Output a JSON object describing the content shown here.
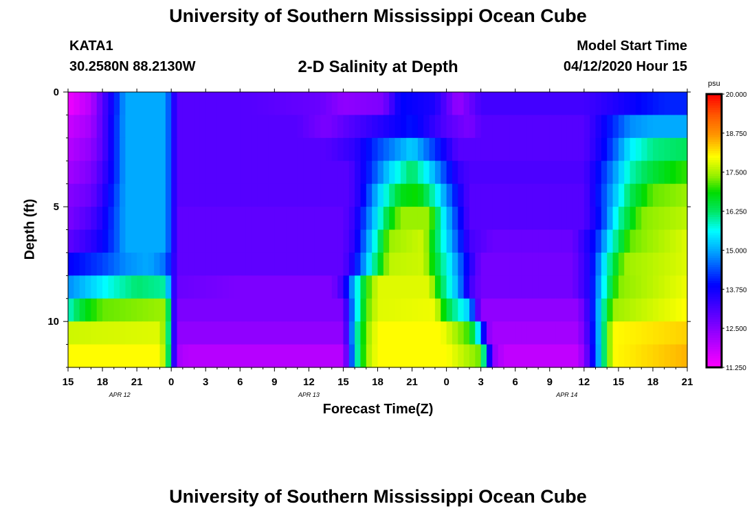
{
  "header": {
    "title": "University of Southern Mississippi Ocean Cube",
    "station": "KATA1",
    "coords": "30.2580N 88.2130W",
    "subtitle": "2-D Salinity at Depth",
    "start_label": "Model Start Time",
    "start_value": "04/12/2020 Hour 15"
  },
  "footer": {
    "title": "University of Southern Mississippi Ocean Cube"
  },
  "chart_data": {
    "type": "heatmap",
    "title": "2-D Salinity at Depth",
    "xlabel": "Forecast Time(Z)",
    "ylabel": "Depth (ft)",
    "x_hours_from_start": [
      0,
      54
    ],
    "y_range_ft": [
      0,
      12
    ],
    "y_ticks": [
      0,
      5,
      10
    ],
    "x_tick_labels": [
      "15",
      "18",
      "21",
      "0",
      "3",
      "6",
      "9",
      "12",
      "15",
      "18",
      "21",
      "0",
      "3",
      "6",
      "9",
      "12",
      "15",
      "18",
      "21"
    ],
    "date_labels": [
      {
        "text": "APR 12",
        "hour": 4.5
      },
      {
        "text": "APR 13",
        "hour": 21
      },
      {
        "text": "APR 14",
        "hour": 43.5
      }
    ],
    "colorbar": {
      "unit": "psu",
      "min": 11.25,
      "max": 20.0,
      "tick_labels": [
        "20.000",
        "18.750",
        "17.500",
        "16.250",
        "15.000",
        "13.750",
        "12.500",
        "11.250"
      ],
      "tick_values": [
        20.0,
        18.75,
        17.5,
        16.25,
        15.0,
        13.75,
        12.5,
        11.25
      ]
    },
    "layers_depth_ft": [
      0.5,
      1.5,
      2.5,
      3.5,
      4.5,
      5.5,
      6.5,
      7.5,
      8.5,
      9.5,
      10.5,
      11.5
    ],
    "profiles_psu_by_depth_layer": [
      [
        [
          0,
          11.4
        ],
        [
          2,
          12.0
        ],
        [
          3,
          13.0
        ],
        [
          4,
          13.9
        ],
        [
          5,
          15.0
        ],
        [
          8.5,
          15.0
        ],
        [
          9.2,
          13.6
        ],
        [
          9.5,
          13.0
        ],
        [
          16,
          13.0
        ],
        [
          22,
          12.8
        ],
        [
          24,
          12.4
        ],
        [
          27.5,
          12.6
        ],
        [
          29,
          13.9
        ],
        [
          32,
          13.6
        ],
        [
          34,
          12.3
        ],
        [
          36,
          13.2
        ],
        [
          45,
          13.2
        ],
        [
          48,
          13.6
        ],
        [
          50,
          13.9
        ],
        [
          52,
          14.1
        ],
        [
          54,
          14.1
        ]
      ],
      [
        [
          0,
          11.8
        ],
        [
          2,
          12.2
        ],
        [
          3,
          13.0
        ],
        [
          4,
          14.0
        ],
        [
          5,
          15.0
        ],
        [
          8.5,
          15.0
        ],
        [
          9.2,
          13.6
        ],
        [
          9.5,
          13.0
        ],
        [
          20,
          13.0
        ],
        [
          22.5,
          12.6
        ],
        [
          24.5,
          13.0
        ],
        [
          30,
          14.0
        ],
        [
          33,
          13.0
        ],
        [
          35,
          12.6
        ],
        [
          36,
          13.0
        ],
        [
          45,
          13.0
        ],
        [
          47,
          13.9
        ],
        [
          49,
          14.8
        ],
        [
          51,
          15.0
        ],
        [
          54,
          15.0
        ]
      ],
      [
        [
          0,
          12.0
        ],
        [
          2,
          12.4
        ],
        [
          3,
          13.0
        ],
        [
          4,
          14.0
        ],
        [
          5,
          15.0
        ],
        [
          8.5,
          15.0
        ],
        [
          9.2,
          13.6
        ],
        [
          9.5,
          13.0
        ],
        [
          22.5,
          13.0
        ],
        [
          25,
          13.4
        ],
        [
          27,
          14.3
        ],
        [
          30,
          15.3
        ],
        [
          32,
          14.2
        ],
        [
          34,
          13.0
        ],
        [
          45,
          13.0
        ],
        [
          47,
          14.0
        ],
        [
          49,
          15.5
        ],
        [
          51,
          16.1
        ],
        [
          54,
          16.3
        ]
      ],
      [
        [
          0,
          12.2
        ],
        [
          2,
          12.6
        ],
        [
          3,
          13.2
        ],
        [
          4,
          14.0
        ],
        [
          5,
          15.0
        ],
        [
          8.5,
          15.0
        ],
        [
          9.2,
          13.6
        ],
        [
          9.5,
          13.0
        ],
        [
          24.5,
          13.0
        ],
        [
          26,
          13.9
        ],
        [
          28,
          15.3
        ],
        [
          30,
          16.3
        ],
        [
          31.5,
          15.4
        ],
        [
          34,
          13.4
        ],
        [
          35,
          13.1
        ],
        [
          45,
          13.1
        ],
        [
          47,
          14.4
        ],
        [
          49,
          15.9
        ],
        [
          51,
          16.5
        ],
        [
          53,
          16.9
        ],
        [
          54,
          17.0
        ]
      ],
      [
        [
          0,
          12.5
        ],
        [
          2,
          12.8
        ],
        [
          3,
          13.4
        ],
        [
          4,
          14.2
        ],
        [
          5,
          15.0
        ],
        [
          8.5,
          15.0
        ],
        [
          9.2,
          13.6
        ],
        [
          9.5,
          13.0
        ],
        [
          24.5,
          13.0
        ],
        [
          25.5,
          13.6
        ],
        [
          27,
          15.2
        ],
        [
          29,
          16.7
        ],
        [
          30.5,
          16.9
        ],
        [
          32,
          15.8
        ],
        [
          34,
          13.8
        ],
        [
          35,
          13.0
        ],
        [
          45,
          13.0
        ],
        [
          47,
          14.6
        ],
        [
          49,
          16.3
        ],
        [
          51,
          17.2
        ],
        [
          54,
          17.4
        ]
      ],
      [
        [
          0,
          12.6
        ],
        [
          2,
          13.1
        ],
        [
          3,
          13.6
        ],
        [
          4,
          14.3
        ],
        [
          5,
          15.0
        ],
        [
          8.5,
          15.0
        ],
        [
          9.2,
          13.6
        ],
        [
          9.5,
          12.9
        ],
        [
          24,
          12.9
        ],
        [
          25,
          13.4
        ],
        [
          26.5,
          15.0
        ],
        [
          28,
          16.6
        ],
        [
          29,
          17.4
        ],
        [
          31.5,
          17.4
        ],
        [
          32.5,
          15.8
        ],
        [
          34,
          14.1
        ],
        [
          35,
          13.0
        ],
        [
          45,
          13.0
        ],
        [
          46.5,
          14.1
        ],
        [
          48,
          15.9
        ],
        [
          50,
          17.3
        ],
        [
          54,
          17.6
        ]
      ],
      [
        [
          0,
          12.9
        ],
        [
          2,
          13.4
        ],
        [
          3,
          13.8
        ],
        [
          4,
          14.3
        ],
        [
          5,
          15.0
        ],
        [
          8.5,
          15.0
        ],
        [
          9.2,
          13.6
        ],
        [
          9.5,
          12.9
        ],
        [
          24,
          12.9
        ],
        [
          25,
          13.5
        ],
        [
          27,
          16.0
        ],
        [
          28,
          17.4
        ],
        [
          31,
          17.7
        ],
        [
          32,
          16.4
        ],
        [
          33.5,
          14.9
        ],
        [
          35,
          13.2
        ],
        [
          37,
          12.8
        ],
        [
          44,
          12.8
        ],
        [
          46,
          14.0
        ],
        [
          47.5,
          15.8
        ],
        [
          49,
          17.2
        ],
        [
          54,
          17.8
        ]
      ],
      [
        [
          0,
          13.8
        ],
        [
          3,
          14.3
        ],
        [
          5,
          14.8
        ],
        [
          7,
          15.0
        ],
        [
          8.5,
          14.6
        ],
        [
          9.2,
          13.5
        ],
        [
          9.5,
          12.9
        ],
        [
          24,
          12.9
        ],
        [
          25,
          13.8
        ],
        [
          27,
          16.4
        ],
        [
          28,
          17.6
        ],
        [
          31,
          17.7
        ],
        [
          32,
          16.6
        ],
        [
          33.5,
          15.3
        ],
        [
          35,
          13.6
        ],
        [
          36,
          12.7
        ],
        [
          44,
          12.7
        ],
        [
          45.5,
          13.6
        ],
        [
          47,
          15.8
        ],
        [
          48.5,
          17.4
        ],
        [
          54,
          17.8
        ]
      ],
      [
        [
          0,
          14.8
        ],
        [
          2,
          15.3
        ],
        [
          4,
          15.8
        ],
        [
          6,
          16.2
        ],
        [
          8.5,
          16.0
        ],
        [
          9.2,
          13.5
        ],
        [
          9.5,
          12.8
        ],
        [
          15,
          12.6
        ],
        [
          23,
          12.6
        ],
        [
          24,
          13.3
        ],
        [
          25,
          15.3
        ],
        [
          26,
          16.9
        ],
        [
          27,
          17.8
        ],
        [
          31.5,
          17.8
        ],
        [
          32.5,
          16.4
        ],
        [
          34,
          15.0
        ],
        [
          35,
          13.3
        ],
        [
          36,
          12.7
        ],
        [
          44,
          12.7
        ],
        [
          45.5,
          13.6
        ],
        [
          46.5,
          15.3
        ],
        [
          48,
          17.3
        ],
        [
          54,
          17.9
        ]
      ],
      [
        [
          0,
          15.8
        ],
        [
          1.5,
          16.7
        ],
        [
          3,
          17.2
        ],
        [
          8.3,
          17.4
        ],
        [
          8.8,
          16.2
        ],
        [
          9.2,
          13.5
        ],
        [
          9.5,
          12.6
        ],
        [
          24,
          12.6
        ],
        [
          25,
          15.2
        ],
        [
          26,
          17.1
        ],
        [
          27,
          17.8
        ],
        [
          32,
          17.9
        ],
        [
          33,
          16.5
        ],
        [
          35,
          15.2
        ],
        [
          35.5,
          13.6
        ],
        [
          36,
          12.4
        ],
        [
          44.5,
          12.4
        ],
        [
          45.5,
          13.5
        ],
        [
          46.5,
          15.6
        ],
        [
          47.5,
          17.4
        ],
        [
          54,
          18.0
        ]
      ],
      [
        [
          0,
          17.7
        ],
        [
          8,
          17.8
        ],
        [
          8.6,
          17.0
        ],
        [
          9.2,
          13.6
        ],
        [
          9.5,
          12.4
        ],
        [
          24,
          12.4
        ],
        [
          24.5,
          13.8
        ],
        [
          25,
          15.6
        ],
        [
          26,
          17.3
        ],
        [
          27,
          18.0
        ],
        [
          32.5,
          18.0
        ],
        [
          35,
          17.0
        ],
        [
          36,
          15.0
        ],
        [
          36.5,
          12.6
        ],
        [
          37,
          12.2
        ],
        [
          44.5,
          12.2
        ],
        [
          45.5,
          13.4
        ],
        [
          46.5,
          15.6
        ],
        [
          47.5,
          18.0
        ],
        [
          54,
          18.3
        ]
      ],
      [
        [
          0,
          18.0
        ],
        [
          8,
          18.0
        ],
        [
          8.6,
          17.2
        ],
        [
          9.2,
          13.6
        ],
        [
          9.5,
          12.2
        ],
        [
          10.5,
          12.0
        ],
        [
          24,
          12.0
        ],
        [
          24.5,
          13.5
        ],
        [
          25,
          15.5
        ],
        [
          26,
          17.4
        ],
        [
          27,
          18.0
        ],
        [
          33,
          18.0
        ],
        [
          36,
          17.2
        ],
        [
          36.5,
          15.0
        ],
        [
          37,
          12.5
        ],
        [
          38,
          11.9
        ],
        [
          44.5,
          11.9
        ],
        [
          45.5,
          13.2
        ],
        [
          46.5,
          15.6
        ],
        [
          47.5,
          18.0
        ],
        [
          54,
          18.5
        ]
      ]
    ]
  }
}
